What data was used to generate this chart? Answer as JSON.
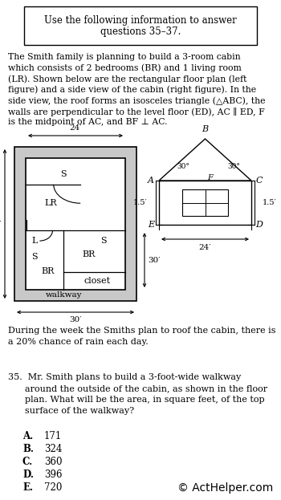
{
  "bg_color": "#ffffff",
  "header_text_line1": "Use the following information to answer",
  "header_text_line2": "questions 35–37.",
  "body_lines": [
    "The Smith family is planning to build a 3-room cabin",
    "which consists of 2 bedrooms (BR) and 1 living room",
    "(LR). Shown below are the rectangular floor plan (left",
    "figure) and a side view of the cabin (right figure). In the",
    "side view, the roof forms an isosceles triangle (△ABC), the",
    "walls are perpendicular to the level floor (ED), AC ∥ ED, F",
    "is the midpoint of AC, and BF ⊥ AC."
  ],
  "rain_lines": [
    "During the week the Smiths plan to roof the cabin, there is",
    "a 20% chance of rain each day."
  ],
  "q35_lines": [
    "35.  Mr. Smith plans to build a 3-foot-wide walkway",
    "      around the outside of the cabin, as shown in the floor",
    "      plan. What will be the area, in square feet, of the top",
    "      surface of the walkway?"
  ],
  "answers": [
    [
      "A.",
      "171"
    ],
    [
      "B.",
      "324"
    ],
    [
      "C.",
      "360"
    ],
    [
      "D.",
      "396"
    ],
    [
      "E.",
      "720"
    ]
  ],
  "copyright": "© ActHelper.com",
  "floor_outer_color": "#cccccc",
  "floor_inner_color": "#ffffff"
}
